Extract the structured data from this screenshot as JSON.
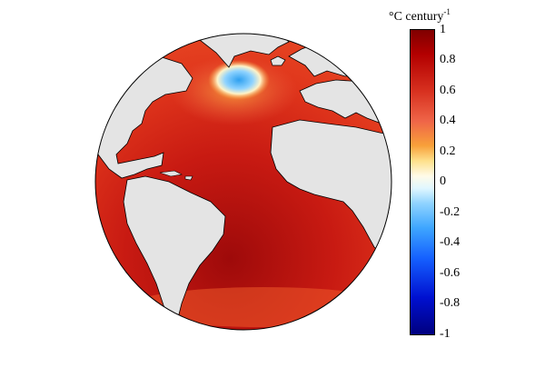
{
  "colorbar": {
    "unit_main": "°C century",
    "unit_exponent": "-1",
    "ticks": [
      "1",
      "0.8",
      "0.6",
      "0.4",
      "0.2",
      "0",
      "-0.2",
      "-0.4",
      "-0.6",
      "-0.8",
      "-1"
    ],
    "range": [
      -1,
      1
    ]
  },
  "map": {
    "projection": "orthographic-globe",
    "region": "Atlantic Ocean",
    "colors": {
      "land": "#e4e4e4",
      "ocean_warm_max": "#7f0000",
      "ocean_mid": "#ef3b1f",
      "cold_anomaly": "#3ea6ff",
      "coastline": "#000000"
    }
  }
}
